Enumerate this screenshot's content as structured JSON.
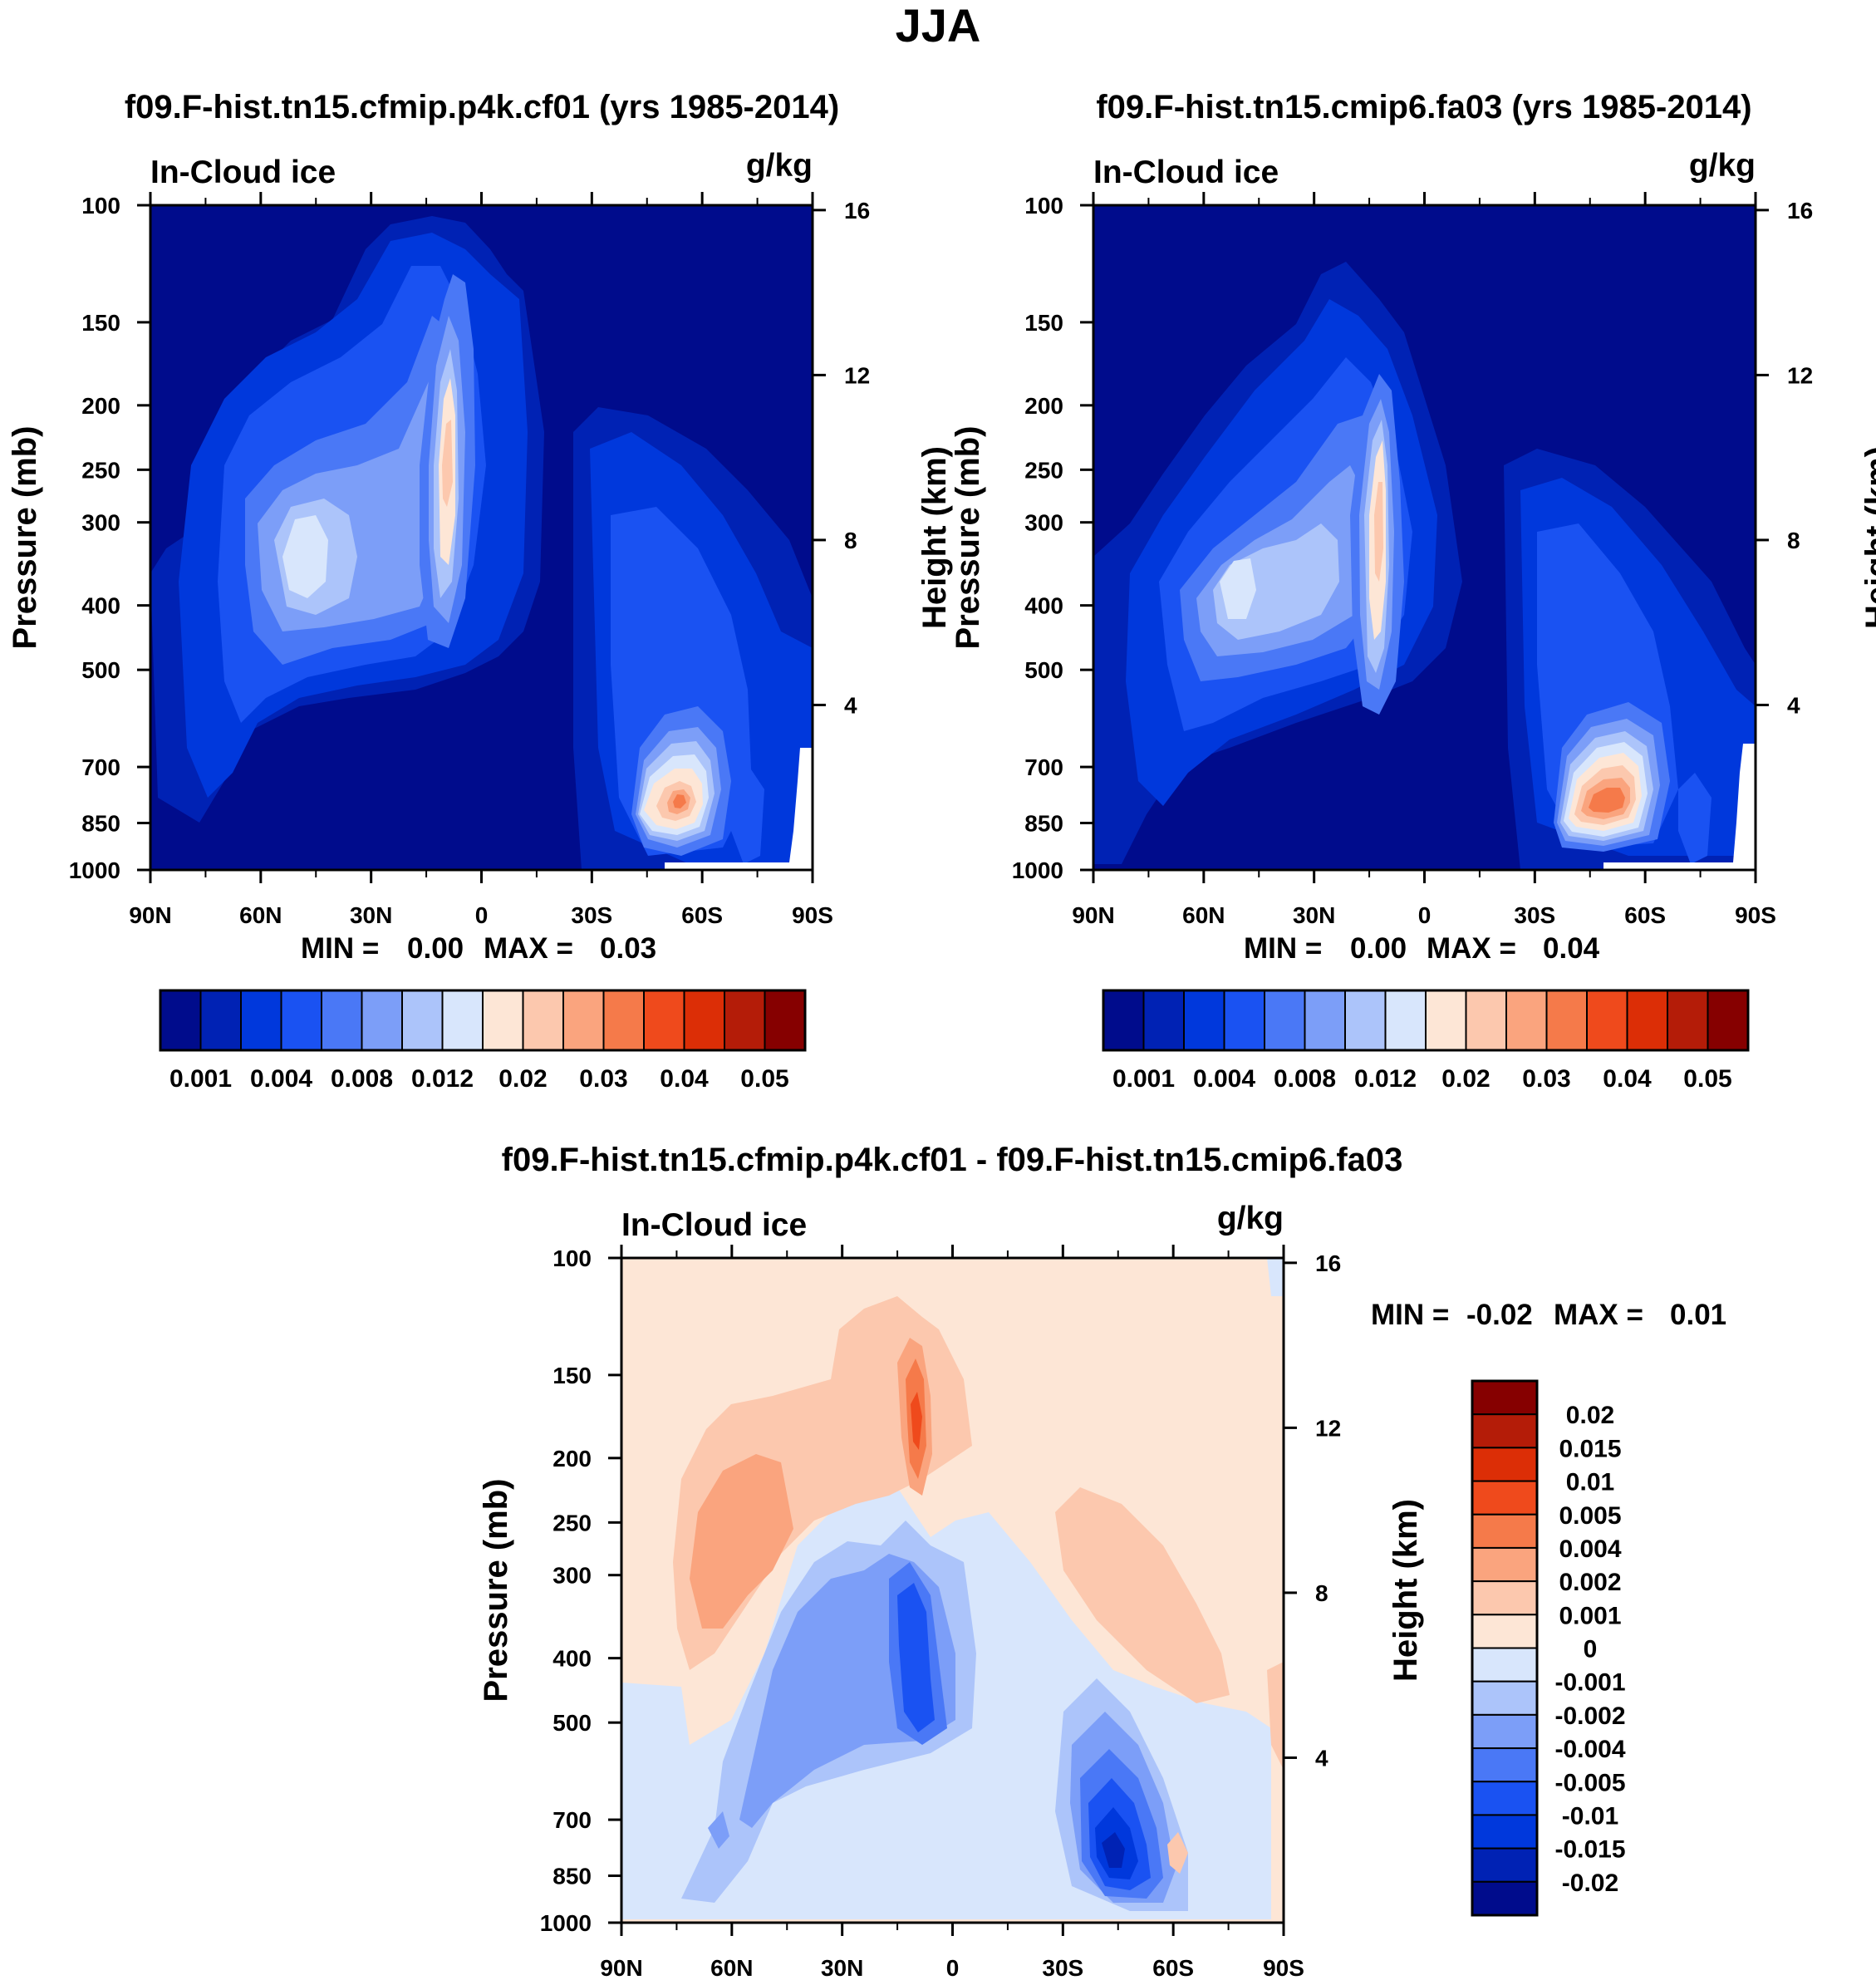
{
  "page_title": "JJA",
  "chart_data": [
    {
      "type": "heatmap",
      "id": "p1",
      "title": "f09.F-hist.tn15.cfmip.p4k.cf01 (yrs 1985-2014)",
      "variable": "In-Cloud ice",
      "units": "g/kg",
      "xlabel": "",
      "ylabel": "Pressure (mb)",
      "y2label": "Height (km)",
      "xticks": [
        "90N",
        "60N",
        "30N",
        "0",
        "30S",
        "60S",
        "90S"
      ],
      "yticks": [
        "100",
        "150",
        "200",
        "250",
        "300",
        "400",
        "500",
        "700",
        "850",
        "1000"
      ],
      "y2ticks": [
        "16",
        "12",
        "8",
        "4"
      ],
      "stats_min_label": "MIN =",
      "stats_min": "0.00",
      "stats_max_label": "MAX =",
      "stats_max": "0.03",
      "colorbar_labels": [
        "0.001",
        "0.004",
        "0.008",
        "0.012",
        "0.02",
        "0.03",
        "0.04",
        "0.05"
      ]
    },
    {
      "type": "heatmap",
      "id": "p2",
      "title": "f09.F-hist.tn15.cmip6.fa03 (yrs 1985-2014)",
      "variable": "In-Cloud ice",
      "units": "g/kg",
      "xlabel": "",
      "ylabel": "Pressure (mb)",
      "y2label": "Height (km)",
      "xticks": [
        "90N",
        "60N",
        "30N",
        "0",
        "30S",
        "60S",
        "90S"
      ],
      "yticks": [
        "100",
        "150",
        "200",
        "250",
        "300",
        "400",
        "500",
        "700",
        "850",
        "1000"
      ],
      "y2ticks": [
        "16",
        "12",
        "8",
        "4"
      ],
      "stats_min_label": "MIN =",
      "stats_min": "0.00",
      "stats_max_label": "MAX =",
      "stats_max": "0.04",
      "colorbar_labels": [
        "0.001",
        "0.004",
        "0.008",
        "0.012",
        "0.02",
        "0.03",
        "0.04",
        "0.05"
      ]
    },
    {
      "type": "heatmap",
      "id": "p3",
      "title": "f09.F-hist.tn15.cfmip.p4k.cf01 - f09.F-hist.tn15.cmip6.fa03",
      "variable": "In-Cloud ice",
      "units": "g/kg",
      "xlabel": "",
      "ylabel": "Pressure (mb)",
      "y2label": "Height (km)",
      "xticks": [
        "90N",
        "60N",
        "30N",
        "0",
        "30S",
        "60S",
        "90S"
      ],
      "yticks": [
        "100",
        "150",
        "200",
        "250",
        "300",
        "400",
        "500",
        "700",
        "850",
        "1000"
      ],
      "y2ticks": [
        "16",
        "12",
        "8",
        "4"
      ],
      "stats_min_label": "MIN =",
      "stats_min": "-0.02",
      "stats_max_label": "MAX =",
      "stats_max": "0.01",
      "colorbar_labels": [
        "0.02",
        "0.015",
        "0.01",
        "0.005",
        "0.004",
        "0.002",
        "0.001",
        "0",
        "-0.001",
        "-0.002",
        "-0.004",
        "-0.005",
        "-0.01",
        "-0.015",
        "-0.02"
      ]
    }
  ],
  "palettes": {
    "abs": [
      "#000c8c",
      "#0022b4",
      "#0038dc",
      "#1a52f2",
      "#4a78f6",
      "#7c9ef8",
      "#acc4fa",
      "#d8e6fc",
      "#fde6d6",
      "#fcc8ae",
      "#faa47e",
      "#f57a4a",
      "#ef4a1c",
      "#dc2e06",
      "#b41c08",
      "#860000"
    ],
    "diff": [
      "#000c8c",
      "#0022b4",
      "#0038dc",
      "#1a52f2",
      "#4a78f6",
      "#7c9ef8",
      "#acc4fa",
      "#d8e6fc",
      "#fde6d6",
      "#fcc8ae",
      "#faa47e",
      "#f57a4a",
      "#ef4a1c",
      "#dc2e06",
      "#b41c08",
      "#860000"
    ]
  }
}
